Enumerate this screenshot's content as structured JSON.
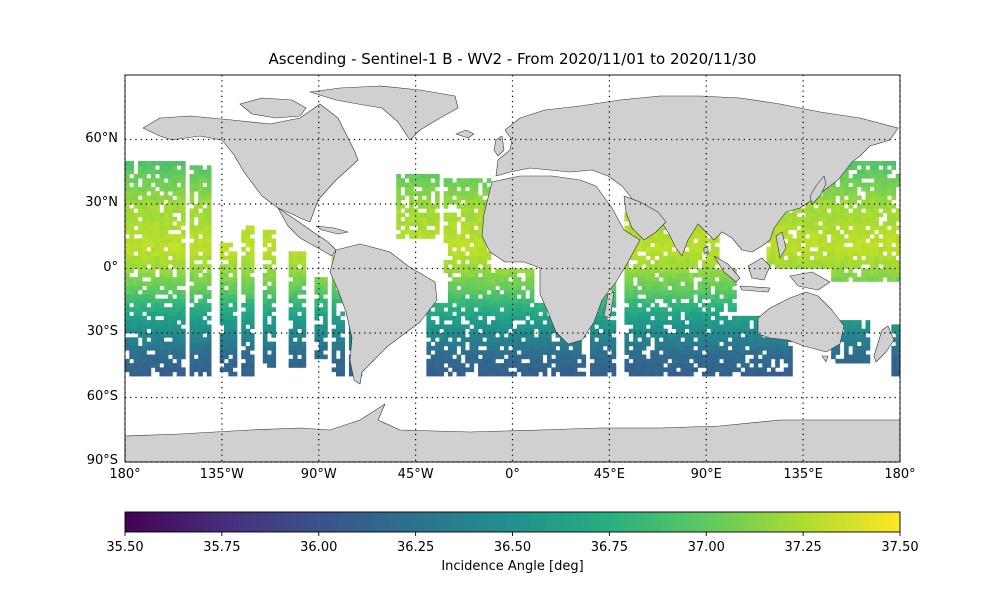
{
  "title": "Ascending - Sentinel-1 B - WV2 - From 2020/11/01 to 2020/11/30",
  "map": {
    "projection": "plate-carree",
    "lon_range": [
      -180,
      180
    ],
    "lat_range": [
      -90,
      90
    ],
    "grid_lons": [
      -180,
      -135,
      -90,
      -45,
      0,
      45,
      90,
      135,
      180
    ],
    "grid_lats": [
      -90,
      -60,
      -30,
      0,
      30,
      60
    ],
    "lat_labels": [
      {
        "lat": 60,
        "text": "60°N"
      },
      {
        "lat": 30,
        "text": "30°N"
      },
      {
        "lat": 0,
        "text": "0°"
      },
      {
        "lat": -30,
        "text": "30°S"
      },
      {
        "lat": -60,
        "text": "60°S"
      },
      {
        "lat": -90,
        "text": "90°S"
      }
    ],
    "lon_labels": [
      {
        "lon": -180,
        "text": "180°"
      },
      {
        "lon": -135,
        "text": "135°W"
      },
      {
        "lon": -90,
        "text": "90°W"
      },
      {
        "lon": -45,
        "text": "45°W"
      },
      {
        "lon": 0,
        "text": "0°"
      },
      {
        "lon": 45,
        "text": "45°E"
      },
      {
        "lon": 90,
        "text": "90°E"
      },
      {
        "lon": 135,
        "text": "135°E"
      },
      {
        "lon": 180,
        "text": "180°"
      }
    ],
    "land_color": "#d0d0d0",
    "coast_color": "#333333",
    "grid_style": "dotted"
  },
  "colorbar": {
    "colormap": "viridis",
    "min": 35.5,
    "max": 37.5,
    "ticks": [
      "35.50",
      "35.75",
      "36.00",
      "36.25",
      "36.50",
      "36.75",
      "37.00",
      "37.25",
      "37.50"
    ],
    "label": "Incidence Angle [deg]",
    "orientation": "horizontal",
    "placement": "bottom"
  },
  "chart_data": {
    "type": "heatmap",
    "title": "Ascending - Sentinel-1 B - WV2 - From 2020/11/01 to 2020/11/30",
    "variable": "Incidence Angle [deg]",
    "value_range": [
      35.5,
      37.5
    ],
    "cell_size_deg": 2,
    "lat_coverage": [
      -50,
      50
    ],
    "gradient": [
      {
        "lat": 48,
        "value": 36.95
      },
      {
        "lat": 30,
        "value": 37.2
      },
      {
        "lat": 10,
        "value": 37.3
      },
      {
        "lat": 0,
        "value": 37.2
      },
      {
        "lat": -10,
        "value": 37.0
      },
      {
        "lat": -20,
        "value": 36.7
      },
      {
        "lat": -30,
        "value": 36.45
      },
      {
        "lat": -40,
        "value": 36.2
      },
      {
        "lat": -50,
        "value": 36.1
      }
    ],
    "swath_regions": [
      {
        "lon": [
          -180,
          -152
        ],
        "lat": [
          -50,
          50
        ]
      },
      {
        "lon": [
          -150,
          -140
        ],
        "lat": [
          -50,
          48
        ]
      },
      {
        "lon": [
          -136,
          -128
        ],
        "lat": [
          -50,
          12
        ]
      },
      {
        "lon": [
          -126,
          -120
        ],
        "lat": [
          -50,
          20
        ]
      },
      {
        "lon": [
          -116,
          -110
        ],
        "lat": [
          -46,
          18
        ]
      },
      {
        "lon": [
          -104,
          -96
        ],
        "lat": [
          -46,
          8
        ]
      },
      {
        "lon": [
          -92,
          -86
        ],
        "lat": [
          -42,
          -4
        ]
      },
      {
        "lon": [
          -84,
          -78
        ],
        "lat": [
          -50,
          6
        ]
      },
      {
        "lon": [
          -76,
          -70
        ],
        "lat": [
          -50,
          -10
        ]
      },
      {
        "lon": [
          -54,
          -34
        ],
        "lat": [
          14,
          44
        ]
      },
      {
        "lon": [
          -32,
          -10
        ],
        "lat": [
          -2,
          42
        ]
      },
      {
        "lon": [
          -40,
          34
        ],
        "lat": [
          -50,
          -16
        ]
      },
      {
        "lon": [
          -30,
          10
        ],
        "lat": [
          -16,
          0
        ]
      },
      {
        "lon": [
          36,
          48
        ],
        "lat": [
          -50,
          -4
        ]
      },
      {
        "lon": [
          52,
          70
        ],
        "lat": [
          -50,
          26
        ]
      },
      {
        "lon": [
          70,
          96
        ],
        "lat": [
          -50,
          22
        ]
      },
      {
        "lon": [
          96,
          130
        ],
        "lat": [
          -50,
          -22
        ]
      },
      {
        "lon": [
          94,
          104
        ],
        "lat": [
          -20,
          0
        ]
      },
      {
        "lon": [
          118,
          150
        ],
        "lat": [
          0,
          38
        ]
      },
      {
        "lon": [
          148,
          180
        ],
        "lat": [
          -6,
          50
        ]
      },
      {
        "lon": [
          148,
          166
        ],
        "lat": [
          -44,
          -24
        ]
      },
      {
        "lon": [
          176,
          180
        ],
        "lat": [
          -50,
          -26
        ]
      }
    ]
  }
}
